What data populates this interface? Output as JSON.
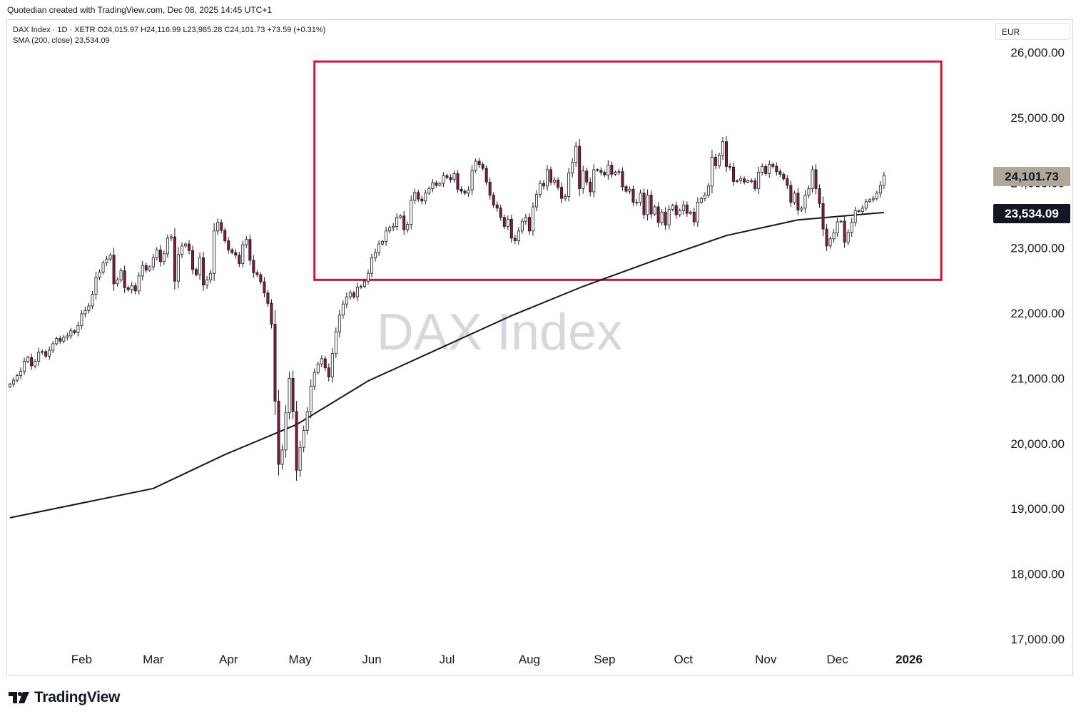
{
  "header": {
    "credit": "Quotedian created with TradingView.com, Dec 08, 2025 14:45 UTC+1"
  },
  "legend": {
    "symbol_line": "DAX Index · 1D · XETR",
    "open": "O24,015.97",
    "high": "H24,116.99",
    "low": "L23,985.28",
    "close": "C24,101.73",
    "change": "+73.59 (+0.31%)",
    "sma_label": "SMA (200, close)",
    "sma_value": "23,534.09"
  },
  "currency": "EUR",
  "badges": {
    "last_price": "24,101.73",
    "sma_price": "23,534.09"
  },
  "watermark": "DAX Index",
  "footer": {
    "brand": "TradingView"
  },
  "colors": {
    "candle_up_fill": "#ffffff",
    "candle_down_fill": "#8b1a3a",
    "candle_outline": "#131722",
    "sma_line": "#131722",
    "highlight_box": "#c8173f",
    "watermark": "#d8d8dc"
  },
  "chart_data": {
    "type": "candlestick",
    "title": "DAX Index",
    "ylim": [
      16700,
      26500
    ],
    "y_ticks": [
      17000,
      18000,
      19000,
      20000,
      21000,
      22000,
      23000,
      24000,
      25000,
      26000
    ],
    "y_tick_labels": [
      "17,000.00",
      "18,000.00",
      "19,000.00",
      "20,000.00",
      "21,000.00",
      "22,000.00",
      "23,000.00",
      "24,000.00",
      "25,000.00",
      "26,000.00"
    ],
    "x_labels": [
      {
        "label": "Feb",
        "day": 20
      },
      {
        "label": "Mar",
        "day": 40
      },
      {
        "label": "Apr",
        "day": 61
      },
      {
        "label": "May",
        "day": 81
      },
      {
        "label": "Jun",
        "day": 101
      },
      {
        "label": "Jul",
        "day": 122
      },
      {
        "label": "Aug",
        "day": 145
      },
      {
        "label": "Sep",
        "day": 166
      },
      {
        "label": "Oct",
        "day": 188
      },
      {
        "label": "Nov",
        "day": 211
      },
      {
        "label": "Dec",
        "day": 231
      },
      {
        "label": "2026",
        "day": 251
      }
    ],
    "x_range_days": [
      0,
      270
    ],
    "closes": [
      20900,
      20960,
      21030,
      21100,
      21250,
      21310,
      21180,
      21250,
      21390,
      21400,
      21330,
      21420,
      21520,
      21600,
      21560,
      21620,
      21640,
      21720,
      21690,
      21800,
      21980,
      22030,
      22100,
      22280,
      22540,
      22620,
      22760,
      22820,
      22880,
      22440,
      22500,
      22640,
      22380,
      22350,
      22410,
      22330,
      22560,
      22720,
      22650,
      22700,
      22840,
      22960,
      22780,
      22900,
      23140,
      23160,
      22480,
      22890,
      23020,
      23050,
      22950,
      22660,
      22580,
      22840,
      22420,
      22500,
      22600,
      23250,
      23380,
      23260,
      23100,
      22960,
      22920,
      22880,
      22750,
      23040,
      23120,
      22800,
      22610,
      22580,
      22470,
      22300,
      22140,
      21820,
      20640,
      19670,
      19890,
      20460,
      20990,
      20480,
      19580,
      19930,
      20190,
      20480,
      20870,
      21080,
      21210,
      21290,
      21150,
      21010,
      21370,
      21700,
      21960,
      22130,
      22240,
      22300,
      22240,
      22390,
      22400,
      22480,
      22600,
      22840,
      22920,
      23050,
      23090,
      23250,
      23300,
      23320,
      23460,
      23480,
      23270,
      23350,
      23720,
      23840,
      23740,
      23710,
      23830,
      23900,
      23990,
      23950,
      23980,
      24100,
      24070,
      24040,
      24130,
      23890,
      23860,
      23830,
      23880,
      24180,
      24320,
      24270,
      24210,
      24000,
      23800,
      23650,
      23600,
      23460,
      23320,
      23430,
      23140,
      23100,
      23250,
      23400,
      23460,
      23250,
      23620,
      23810,
      23980,
      23940,
      24190,
      24000,
      24030,
      23920,
      23750,
      23780,
      24140,
      24300,
      24550,
      23900,
      24170,
      24000,
      23850,
      24190,
      24180,
      24150,
      24110,
      24260,
      24120,
      24150,
      24160,
      23930,
      23860,
      23890,
      23690,
      23690,
      23830,
      23500,
      23800,
      23510,
      23620,
      23380,
      23540,
      23340,
      23580,
      23640,
      23500,
      23560,
      23650,
      23520,
      23540,
      23390,
      23690,
      23750,
      23800,
      23940,
      24380,
      24250,
      24410,
      24620,
      24240,
      24230,
      24010,
      24020,
      24050,
      24000,
      24020,
      24020,
      23900,
      24150,
      24240,
      24130,
      24270,
      24240,
      24160,
      24120,
      24050,
      23950,
      23690,
      23830,
      23570,
      23600,
      23800,
      23900,
      24190,
      23900,
      23670,
      23280,
      23020,
      23130,
      23220,
      23390,
      23400,
      23080,
      23230,
      23380,
      23560,
      23550,
      23600,
      23700,
      23730,
      23750,
      23830,
      23950,
      24102
    ],
    "sma_series": [
      {
        "day": 0,
        "value": 18850
      },
      {
        "day": 40,
        "value": 19300
      },
      {
        "day": 60,
        "value": 19820
      },
      {
        "day": 80,
        "value": 20280
      },
      {
        "day": 100,
        "value": 20950
      },
      {
        "day": 120,
        "value": 21450
      },
      {
        "day": 140,
        "value": 21950
      },
      {
        "day": 160,
        "value": 22400
      },
      {
        "day": 180,
        "value": 22800
      },
      {
        "day": 200,
        "value": 23180
      },
      {
        "day": 220,
        "value": 23420
      },
      {
        "day": 244,
        "value": 23534
      }
    ],
    "highlight_range": {
      "day_from": 85,
      "day_to": 260,
      "y_from": 22500,
      "y_to": 25850
    }
  }
}
